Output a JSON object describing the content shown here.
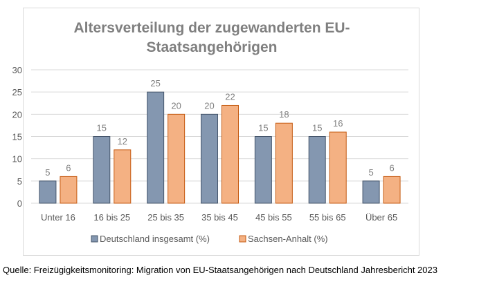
{
  "source": "Quelle: Freizügigkeitsmonitoring: Migration von EU-Staatsangehörigen nach Deutschland Jahresbericht 2023",
  "colors": {
    "series1_fill": "#8497b0",
    "series1_stroke": "#44546a",
    "series2_fill": "#f4b183",
    "series2_stroke": "#c55a11",
    "gridline": "#d9d9d9",
    "title": "#7f7f7f"
  },
  "chart_data": {
    "type": "bar",
    "title_lines": [
      "Altersverteilung der zugewanderten EU-",
      "Staatsangehörigen"
    ],
    "categories": [
      "Unter 16",
      "16 bis 25",
      "25 bis 35",
      "35 bis 45",
      "45 bis 55",
      "55 bis 65",
      "Über 65"
    ],
    "series": [
      {
        "name": "Deutschland insgesamt (%)",
        "values": [
          5,
          15,
          25,
          20,
          15,
          15,
          5
        ]
      },
      {
        "name": "Sachsen-Anhalt (%)",
        "values": [
          6,
          12,
          20,
          22,
          18,
          16,
          6
        ]
      }
    ],
    "ylim": [
      0,
      30
    ],
    "yticks": [
      0,
      5,
      10,
      15,
      20,
      25,
      30
    ],
    "grid": true,
    "legend": "bottom",
    "data_labels": true
  }
}
